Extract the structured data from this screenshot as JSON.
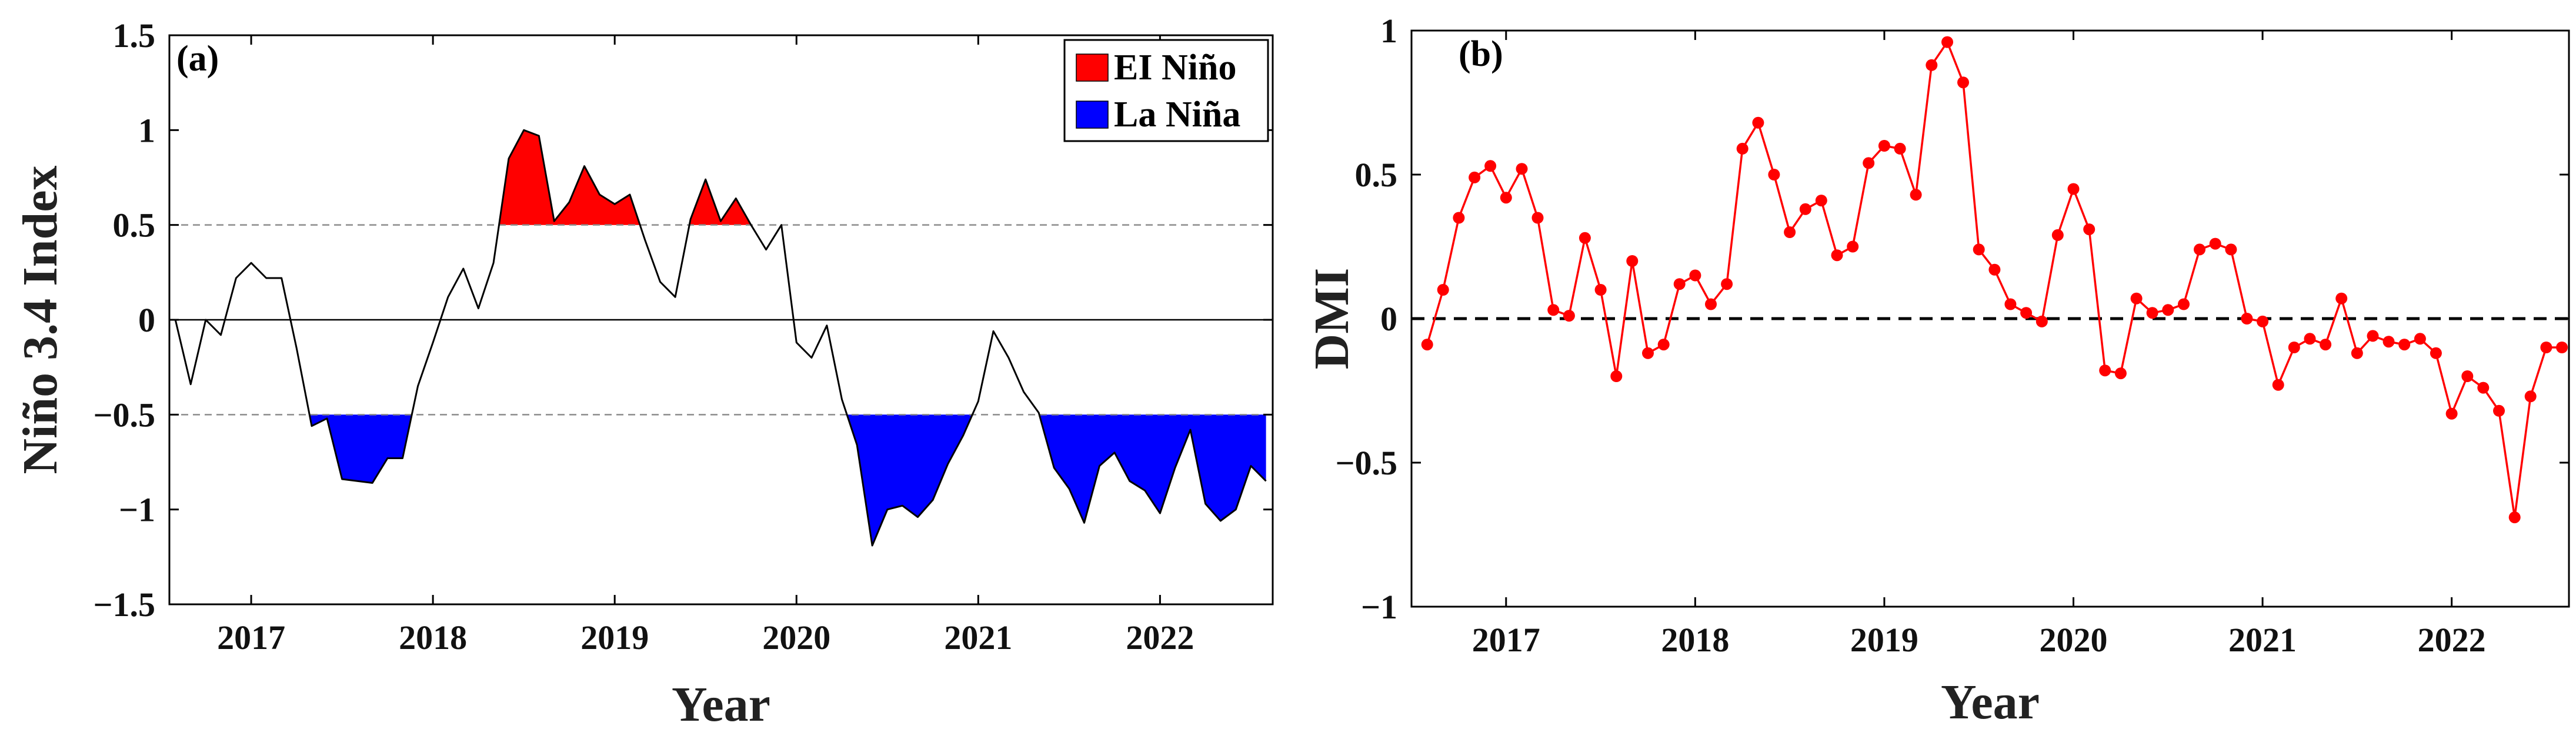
{
  "colors": {
    "el_nino": "#ff0000",
    "la_nina": "#0000ff",
    "line_a": "#000000",
    "line_b": "#ff0000",
    "ref_a": "#8c8c8c",
    "ref_b": "#000000"
  },
  "chart_data": [
    {
      "type": "area",
      "panel_label": "(a)",
      "title": "",
      "xlabel": "Year",
      "ylabel": "Niño 3.4 Index",
      "xlim": [
        2016.55,
        2022.62
      ],
      "ylim": [
        -1.5,
        1.5
      ],
      "yticks": [
        1.5,
        1,
        0.5,
        0,
        -0.5,
        -1,
        -1.5
      ],
      "ytick_labels": [
        "1.5",
        "1",
        "0.5",
        "0",
        "−0.5",
        "−1",
        "−1.5"
      ],
      "xticks": [
        2017,
        2018,
        2019,
        2020,
        2021,
        2022
      ],
      "xtick_labels": [
        "2017",
        "2018",
        "2019",
        "2020",
        "2021",
        "2022"
      ],
      "thresholds": [
        0.5,
        -0.5
      ],
      "legend": [
        {
          "label": "EI Niño",
          "color": "#ff0000"
        },
        {
          "label": "La Niña",
          "color": "#0000ff"
        }
      ],
      "legend_position": "top-right",
      "x": [
        2016.583,
        2016.667,
        2016.75,
        2016.833,
        2016.917,
        2017.0,
        2017.083,
        2017.167,
        2017.25,
        2017.333,
        2017.417,
        2017.5,
        2017.583,
        2017.667,
        2017.75,
        2017.833,
        2017.917,
        2018.0,
        2018.083,
        2018.167,
        2018.25,
        2018.333,
        2018.417,
        2018.5,
        2018.583,
        2018.667,
        2018.75,
        2018.833,
        2018.917,
        2019.0,
        2019.083,
        2019.167,
        2019.25,
        2019.333,
        2019.417,
        2019.5,
        2019.583,
        2019.667,
        2019.75,
        2019.833,
        2019.917,
        2020.0,
        2020.083,
        2020.167,
        2020.25,
        2020.333,
        2020.417,
        2020.5,
        2020.583,
        2020.667,
        2020.75,
        2020.833,
        2020.917,
        2021.0,
        2021.083,
        2021.167,
        2021.25,
        2021.333,
        2021.417,
        2021.5,
        2021.583,
        2021.667,
        2021.75,
        2021.833,
        2021.917,
        2022.0,
        2022.083,
        2022.167,
        2022.25,
        2022.333,
        2022.417,
        2022.5,
        2022.583
      ],
      "y": [
        0.0,
        -0.34,
        0.0,
        -0.08,
        0.22,
        0.3,
        0.22,
        0.22,
        -0.15,
        -0.56,
        -0.52,
        -0.84,
        -0.85,
        -0.86,
        -0.73,
        -0.73,
        -0.35,
        -0.12,
        0.12,
        0.27,
        0.06,
        0.3,
        0.85,
        1.0,
        0.97,
        0.52,
        0.62,
        0.81,
        0.66,
        0.61,
        0.66,
        0.42,
        0.2,
        0.12,
        0.53,
        0.74,
        0.52,
        0.64,
        0.5,
        0.37,
        0.5,
        -0.12,
        -0.2,
        -0.03,
        -0.42,
        -0.66,
        -1.19,
        -1.0,
        -0.98,
        -1.04,
        -0.95,
        -0.76,
        -0.61,
        -0.43,
        -0.06,
        -0.2,
        -0.38,
        -0.49,
        -0.78,
        -0.89,
        -1.07,
        -0.77,
        -0.7,
        -0.85,
        -0.9,
        -1.02,
        -0.78,
        -0.58,
        -0.97,
        -1.06,
        -1.0,
        -0.77,
        -0.85
      ]
    },
    {
      "type": "line",
      "panel_label": "(b)",
      "title": "",
      "xlabel": "Year",
      "ylabel": "DMI",
      "xlim": [
        2016.5,
        2022.62
      ],
      "ylim": [
        -1,
        1
      ],
      "yticks": [
        1,
        0.5,
        0,
        -0.5,
        -1
      ],
      "ytick_labels": [
        "1",
        "0.5",
        "0",
        "−0.5",
        "−1"
      ],
      "xticks": [
        2017,
        2018,
        2019,
        2020,
        2021,
        2022
      ],
      "xtick_labels": [
        "2017",
        "2018",
        "2019",
        "2020",
        "2021",
        "2022"
      ],
      "reference_line": 0,
      "x": [
        2016.583,
        2016.667,
        2016.75,
        2016.833,
        2016.917,
        2017.0,
        2017.083,
        2017.167,
        2017.25,
        2017.333,
        2017.417,
        2017.5,
        2017.583,
        2017.667,
        2017.75,
        2017.833,
        2017.917,
        2018.0,
        2018.083,
        2018.167,
        2018.25,
        2018.333,
        2018.417,
        2018.5,
        2018.583,
        2018.667,
        2018.75,
        2018.833,
        2018.917,
        2019.0,
        2019.083,
        2019.167,
        2019.25,
        2019.333,
        2019.417,
        2019.5,
        2019.583,
        2019.667,
        2019.75,
        2019.833,
        2019.917,
        2020.0,
        2020.083,
        2020.167,
        2020.25,
        2020.333,
        2020.417,
        2020.5,
        2020.583,
        2020.667,
        2020.75,
        2020.833,
        2020.917,
        2021.0,
        2021.083,
        2021.167,
        2021.25,
        2021.333,
        2021.417,
        2021.5,
        2021.583,
        2021.667,
        2021.75,
        2021.833,
        2021.917,
        2022.0,
        2022.083,
        2022.167,
        2022.25,
        2022.333,
        2022.417,
        2022.5,
        2022.583
      ],
      "y": [
        -0.09,
        0.1,
        0.35,
        0.49,
        0.53,
        0.42,
        0.52,
        0.35,
        0.03,
        0.01,
        0.28,
        0.1,
        -0.2,
        0.2,
        -0.12,
        -0.09,
        0.12,
        0.15,
        0.05,
        0.12,
        0.59,
        0.68,
        0.5,
        0.3,
        0.38,
        0.41,
        0.22,
        0.25,
        0.54,
        0.6,
        0.59,
        0.43,
        0.88,
        0.96,
        0.82,
        0.24,
        0.17,
        0.05,
        0.02,
        -0.01,
        0.29,
        0.45,
        0.31,
        -0.18,
        -0.19,
        0.07,
        0.02,
        0.03,
        0.05,
        0.24,
        0.26,
        0.24,
        0.0,
        -0.01,
        -0.23,
        -0.1,
        -0.07,
        -0.09,
        0.07,
        -0.12,
        -0.06,
        -0.08,
        -0.09,
        -0.07,
        -0.12,
        -0.33,
        -0.2,
        -0.24,
        -0.32,
        -0.69,
        -0.27,
        -0.1,
        -0.1
      ]
    }
  ]
}
